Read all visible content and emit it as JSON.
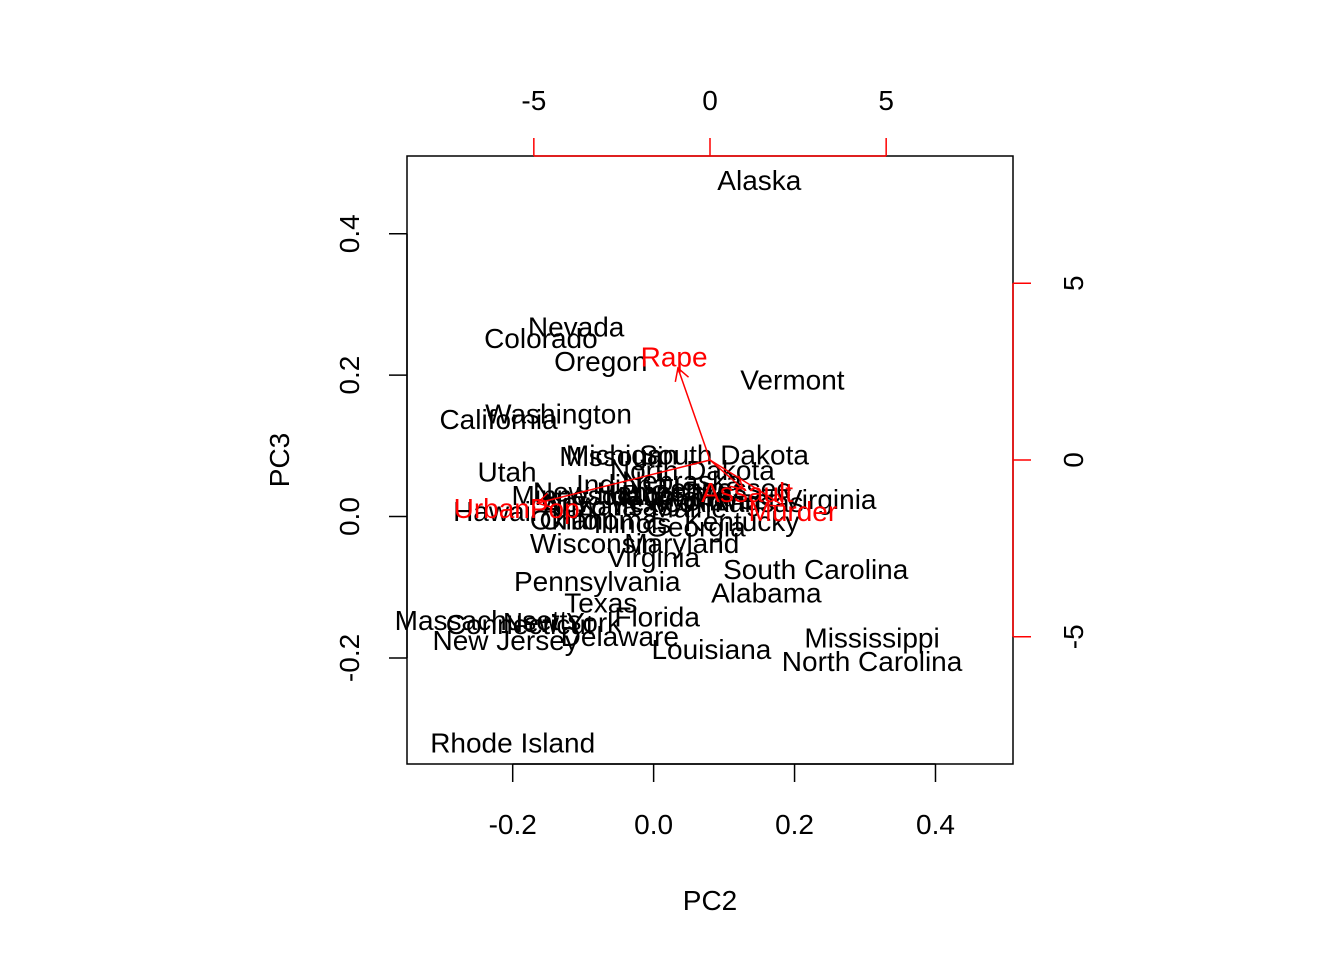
{
  "chart_data": {
    "type": "scatter",
    "subtype": "biplot",
    "xlabel": "PC2",
    "ylabel": "PC3",
    "xlim": [
      -0.35,
      0.51
    ],
    "ylim": [
      -0.35,
      0.51
    ],
    "x_ticks": [
      -0.2,
      0.0,
      0.2,
      0.4
    ],
    "x_tick_labels": [
      "-0.2",
      "0.0",
      "0.2",
      "0.4"
    ],
    "y_ticks": [
      -0.2,
      0.0,
      0.2,
      0.4
    ],
    "y_tick_labels": [
      "-0.2",
      "0.0",
      "0.2",
      "0.4"
    ],
    "top_axis": {
      "range": [
        -8.6,
        8.6
      ],
      "ticks": [
        -5,
        0,
        5
      ],
      "tick_labels": [
        "-5",
        "0",
        "5"
      ]
    },
    "right_axis": {
      "range": [
        -8.6,
        8.6
      ],
      "ticks": [
        -5,
        0,
        5
      ],
      "tick_labels": [
        "-5",
        "0",
        "5"
      ]
    },
    "grid": false,
    "point_color": "#000000",
    "arrow_color": "#ff0000",
    "points": [
      {
        "label": "Alaska",
        "x": 0.15,
        "y": 0.475
      },
      {
        "label": "Nevada",
        "x": -0.11,
        "y": 0.268
      },
      {
        "label": "Colorado",
        "x": -0.16,
        "y": 0.252
      },
      {
        "label": "Oregon",
        "x": -0.075,
        "y": 0.219
      },
      {
        "label": "Vermont",
        "x": 0.197,
        "y": 0.193
      },
      {
        "label": "Washington",
        "x": -0.135,
        "y": 0.145
      },
      {
        "label": "California",
        "x": -0.22,
        "y": 0.137
      },
      {
        "label": "Michigan",
        "x": -0.045,
        "y": 0.087
      },
      {
        "label": "Missouri",
        "x": -0.06,
        "y": 0.085
      },
      {
        "label": "South Dakota",
        "x": 0.1,
        "y": 0.087
      },
      {
        "label": "North Dakota",
        "x": 0.055,
        "y": 0.065
      },
      {
        "label": "Utah",
        "x": -0.208,
        "y": 0.063
      },
      {
        "label": "Indiana",
        "x": -0.045,
        "y": 0.045
      },
      {
        "label": "Nebraska",
        "x": 0.04,
        "y": 0.05
      },
      {
        "label": "Tennessee",
        "x": 0.1,
        "y": 0.04
      },
      {
        "label": "West Virginia",
        "x": 0.2,
        "y": 0.024
      },
      {
        "label": "Arkansas",
        "x": 0.13,
        "y": 0.02
      },
      {
        "label": "Montana",
        "x": 0.03,
        "y": 0.028
      },
      {
        "label": "Minnesota",
        "x": -0.11,
        "y": 0.03
      },
      {
        "label": "New Mexico",
        "x": -0.05,
        "y": 0.02
      },
      {
        "label": "Idaho",
        "x": -0.02,
        "y": 0.03
      },
      {
        "label": "Kansas",
        "x": -0.04,
        "y": 0.015
      },
      {
        "label": "Maine",
        "x": 0.05,
        "y": 0.012
      },
      {
        "label": "Wyoming",
        "x": 0.07,
        "y": 0.022
      },
      {
        "label": "Iowa",
        "x": 0.07,
        "y": 0.04
      },
      {
        "label": "New Hampshire",
        "x": -0.03,
        "y": 0.035
      },
      {
        "label": "Arizona",
        "x": -0.09,
        "y": 0.015
      },
      {
        "label": "Hawaii",
        "x": -0.225,
        "y": 0.007
      },
      {
        "label": "Oklahoma",
        "x": -0.085,
        "y": -0.005
      },
      {
        "label": "Ohio",
        "x": -0.12,
        "y": -0.005
      },
      {
        "label": "Kentucky",
        "x": 0.125,
        "y": -0.007
      },
      {
        "label": "Illinois",
        "x": -0.03,
        "y": -0.01
      },
      {
        "label": "Georgia",
        "x": 0.06,
        "y": -0.015
      },
      {
        "label": "Wisconsin",
        "x": -0.085,
        "y": -0.038
      },
      {
        "label": "Maryland",
        "x": 0.04,
        "y": -0.038
      },
      {
        "label": "Virginia",
        "x": 0.0,
        "y": -0.058
      },
      {
        "label": "South Carolina",
        "x": 0.23,
        "y": -0.075
      },
      {
        "label": "Pennsylvania",
        "x": -0.08,
        "y": -0.092
      },
      {
        "label": "Alabama",
        "x": 0.16,
        "y": -0.108
      },
      {
        "label": "Texas",
        "x": -0.075,
        "y": -0.122
      },
      {
        "label": "Florida",
        "x": 0.005,
        "y": -0.142
      },
      {
        "label": "Massachusetts",
        "x": -0.235,
        "y": -0.147
      },
      {
        "label": "Connecticut",
        "x": -0.19,
        "y": -0.153
      },
      {
        "label": "New York",
        "x": -0.13,
        "y": -0.15
      },
      {
        "label": "Delaware",
        "x": -0.048,
        "y": -0.17
      },
      {
        "label": "New Jersey",
        "x": -0.21,
        "y": -0.175
      },
      {
        "label": "Louisiana",
        "x": 0.082,
        "y": -0.188
      },
      {
        "label": "Mississippi",
        "x": 0.31,
        "y": -0.172
      },
      {
        "label": "North Carolina",
        "x": 0.31,
        "y": -0.205
      },
      {
        "label": "Rhode Island",
        "x": -0.2,
        "y": -0.32
      }
    ],
    "arrows": [
      {
        "label": "Rape",
        "x": -0.91,
        "y": 2.6
      },
      {
        "label": "UrbanPop",
        "x": -4.9,
        "y": -1.22
      },
      {
        "label": "Assault",
        "x": 0.94,
        "y": -0.82
      },
      {
        "label": "Murder",
        "x": 2.1,
        "y": -1.3
      }
    ]
  }
}
